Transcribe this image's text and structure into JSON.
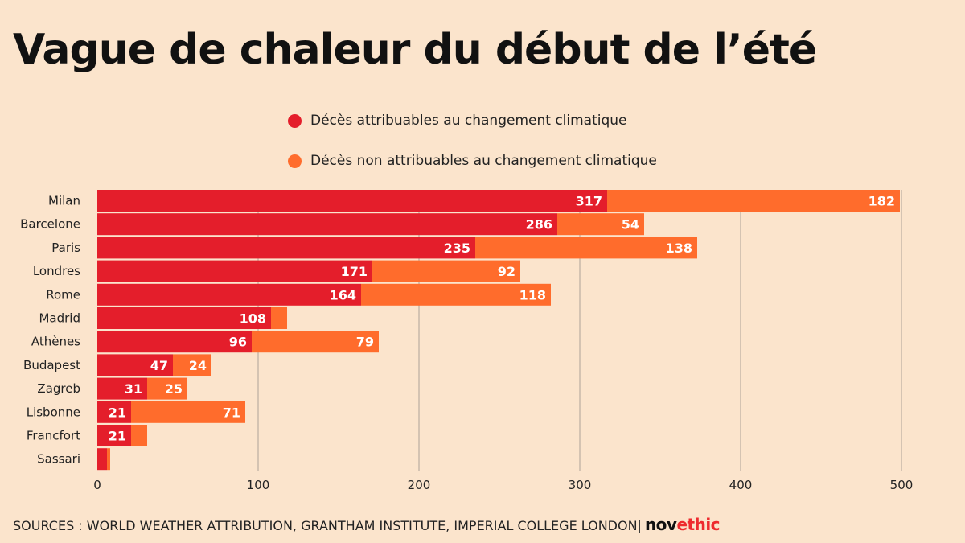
{
  "title": "Vague de chaleur du début de l’été",
  "legend": [
    {
      "label": "Décès attribuables au changement climatique",
      "color": "#e41e2b"
    },
    {
      "label": "Décès non attribuables au changement climatique",
      "color": "#ff6c2c"
    }
  ],
  "source": "SOURCES : WORLD WEATHER ATTRIBUTION, GRANTHAM INSTITUTE, IMPERIAL COLLEGE LONDON|",
  "brand": {
    "part1": "nov",
    "part2": "ethic"
  },
  "chart_data": {
    "type": "bar",
    "orientation": "horizontal",
    "stacked": true,
    "categories": [
      "Milan",
      "Barcelone",
      "Paris",
      "Londres",
      "Rome",
      "Madrid",
      "Athènes",
      "Budapest",
      "Zagreb",
      "Lisbonne",
      "Francfort",
      "Sassari"
    ],
    "series": [
      {
        "name": "Décès attribuables au changement climatique",
        "color": "#e41e2b",
        "values": [
          317,
          286,
          235,
          171,
          164,
          108,
          96,
          47,
          31,
          21,
          21,
          6
        ],
        "labels": [
          "317",
          "286",
          "235",
          "171",
          "164",
          "108",
          "96",
          "47",
          "31",
          "21",
          "21",
          ""
        ]
      },
      {
        "name": "Décès non attribuables au changement climatique",
        "color": "#ff6c2c",
        "values": [
          182,
          54,
          138,
          92,
          118,
          10,
          79,
          24,
          25,
          71,
          10,
          2
        ],
        "labels": [
          "182",
          "54",
          "138",
          "92",
          "118",
          "",
          "79",
          "24",
          "25",
          "71",
          "",
          ""
        ]
      }
    ],
    "xlim": [
      0,
      500
    ],
    "xticks": [
      "0",
      "100",
      "200",
      "300",
      "400",
      "500"
    ],
    "grid": true,
    "legend_position": "top"
  }
}
